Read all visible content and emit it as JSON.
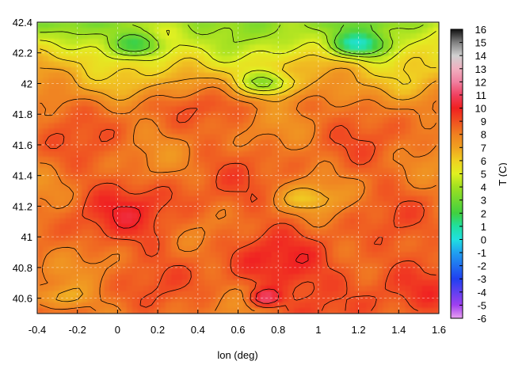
{
  "chart_data": {
    "type": "heatmap",
    "title": "",
    "xlabel": "lon (deg)",
    "ylabel": "",
    "colorbar_label": "T (C)",
    "xlim": [
      -0.4,
      1.6
    ],
    "ylim": [
      40.5,
      42.4
    ],
    "x_ticks": [
      "-0.4",
      "-0.2",
      "0",
      "0.2",
      "0.4",
      "0.6",
      "0.8",
      "1",
      "1.2",
      "1.4",
      "1.6"
    ],
    "y_ticks": [
      "40.6",
      "40.8",
      "41",
      "41.2",
      "41.4",
      "41.6",
      "41.8",
      "42",
      "42.2",
      "42.4"
    ],
    "colorbar_range": [
      -6,
      16
    ],
    "colorbar_ticks": [
      "16",
      "15",
      "14",
      "13",
      "12",
      "11",
      "10",
      "9",
      "8",
      "7",
      "6",
      "5",
      "4",
      "3",
      "2",
      "1",
      "0",
      "-1",
      "-2",
      "-3",
      "-4",
      "-5",
      "-6"
    ],
    "grid": true,
    "colormap_stops": [
      {
        "value": -6,
        "color": "#e8a0f0"
      },
      {
        "value": -5,
        "color": "#a040f0"
      },
      {
        "value": -3,
        "color": "#2040f0"
      },
      {
        "value": -1,
        "color": "#20a0f0"
      },
      {
        "value": 0,
        "color": "#20e0e0"
      },
      {
        "value": 1,
        "color": "#20e0a0"
      },
      {
        "value": 2,
        "color": "#40d040"
      },
      {
        "value": 4,
        "color": "#a0e020"
      },
      {
        "value": 5,
        "color": "#e0f020"
      },
      {
        "value": 6,
        "color": "#f0d020"
      },
      {
        "value": 7,
        "color": "#f0a020"
      },
      {
        "value": 8,
        "color": "#f08020"
      },
      {
        "value": 9,
        "color": "#f05020"
      },
      {
        "value": 10,
        "color": "#f02020"
      },
      {
        "value": 11,
        "color": "#f04060"
      },
      {
        "value": 12,
        "color": "#f080a0"
      },
      {
        "value": 13,
        "color": "#f0b0c0"
      },
      {
        "value": 14,
        "color": "#d0d0d0"
      },
      {
        "value": 15,
        "color": "#808080"
      },
      {
        "value": 16,
        "color": "#101010"
      }
    ],
    "field_features": {
      "base_temperature": 8.3,
      "warm_zones": [
        {
          "lon": 0.1,
          "lat": 41.15,
          "t": 10.0
        },
        {
          "lon": 1.3,
          "lat": 40.7,
          "t": 9.8
        },
        {
          "lon": 0.8,
          "lat": 40.8,
          "t": 10.0
        }
      ],
      "cold_zones": [
        {
          "lon": 1.2,
          "lat": 42.25,
          "t": 3.0
        },
        {
          "lon": 0.1,
          "lat": 42.25,
          "t": 4.5
        },
        {
          "lon": -0.3,
          "lat": 40.6,
          "t": 6.0
        },
        {
          "lon": 0.95,
          "lat": 41.25,
          "t": 6.5
        },
        {
          "lon": 0.75,
          "lat": 42.0,
          "t": 4.0
        }
      ],
      "hot_spot": {
        "lon": 0.73,
        "lat": 40.6,
        "t": 12.0
      }
    }
  }
}
